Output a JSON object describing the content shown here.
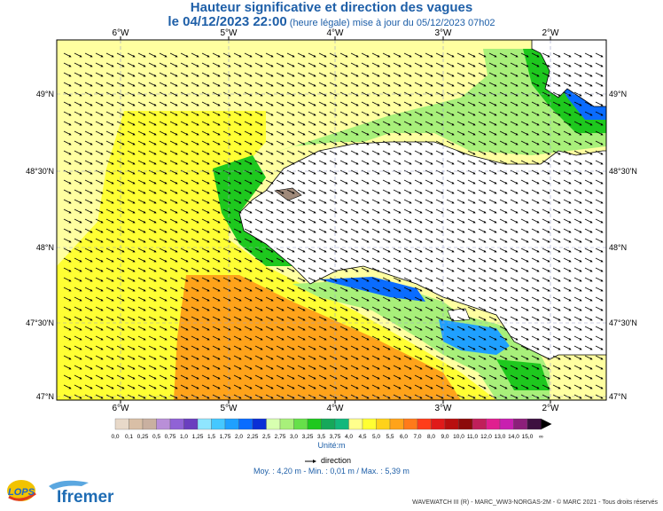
{
  "header": {
    "title": "Hauteur significative et direction des vagues",
    "date_main": "le 04/12/2023 22:00",
    "date_note": "(heure légale) mise à jour du 05/12/2023 07h02"
  },
  "map": {
    "lon_labels": [
      "6°W",
      "5°W",
      "4°W",
      "3°W",
      "2°W"
    ],
    "lat_labels": [
      "49°N",
      "48°30'N",
      "48°N",
      "47°30'N",
      "47°N"
    ],
    "land_color": "#ffffff"
  },
  "legend": {
    "ticks": [
      "0,0",
      "0,1",
      "0,25",
      "0,5",
      "0,75",
      "1,0",
      "1,25",
      "1,5",
      "1,75",
      "2,0",
      "2,25",
      "2,5",
      "2,75",
      "3,0",
      "3,25",
      "3,5",
      "3,75",
      "4,0",
      "4,5",
      "5,0",
      "5,5",
      "6,0",
      "7,0",
      "8,0",
      "9,0",
      "10,0",
      "11,0",
      "12,0",
      "13,0",
      "14,0",
      "15,0",
      "∞"
    ],
    "colors": [
      "#e8d9c9",
      "#d9bfa6",
      "#c9b0a0",
      "#b98fd8",
      "#9063d6",
      "#6a3fbf",
      "#8fe6ff",
      "#45c8ff",
      "#1fa0ff",
      "#0a6cff",
      "#0a2fd6",
      "#d8ffb0",
      "#a8f07a",
      "#66e04a",
      "#1ec81e",
      "#16a85a",
      "#13b87c",
      "#ffff8c",
      "#ffff33",
      "#ffd21a",
      "#ffa31a",
      "#ff7a1a",
      "#ff3d1a",
      "#e01a1a",
      "#b80f0f",
      "#8c0a0a",
      "#c01f5a",
      "#e01f8f",
      "#c81fb0",
      "#8c1f7a",
      "#3d1040"
    ],
    "unit": "Unité:m",
    "direction_label": "direction"
  },
  "stats": {
    "text": "Moy. : 4,20 m   -   Min. : 0,01 m / Max. : 5,39 m"
  },
  "footer": {
    "credit": "WAVEWATCH III (R) - MARC_WW3-NORGAS-2M - © MARC 2021 - Tous droits réservés",
    "logo_lops": "LOPS",
    "logo_ifremer": "Ifremer"
  }
}
